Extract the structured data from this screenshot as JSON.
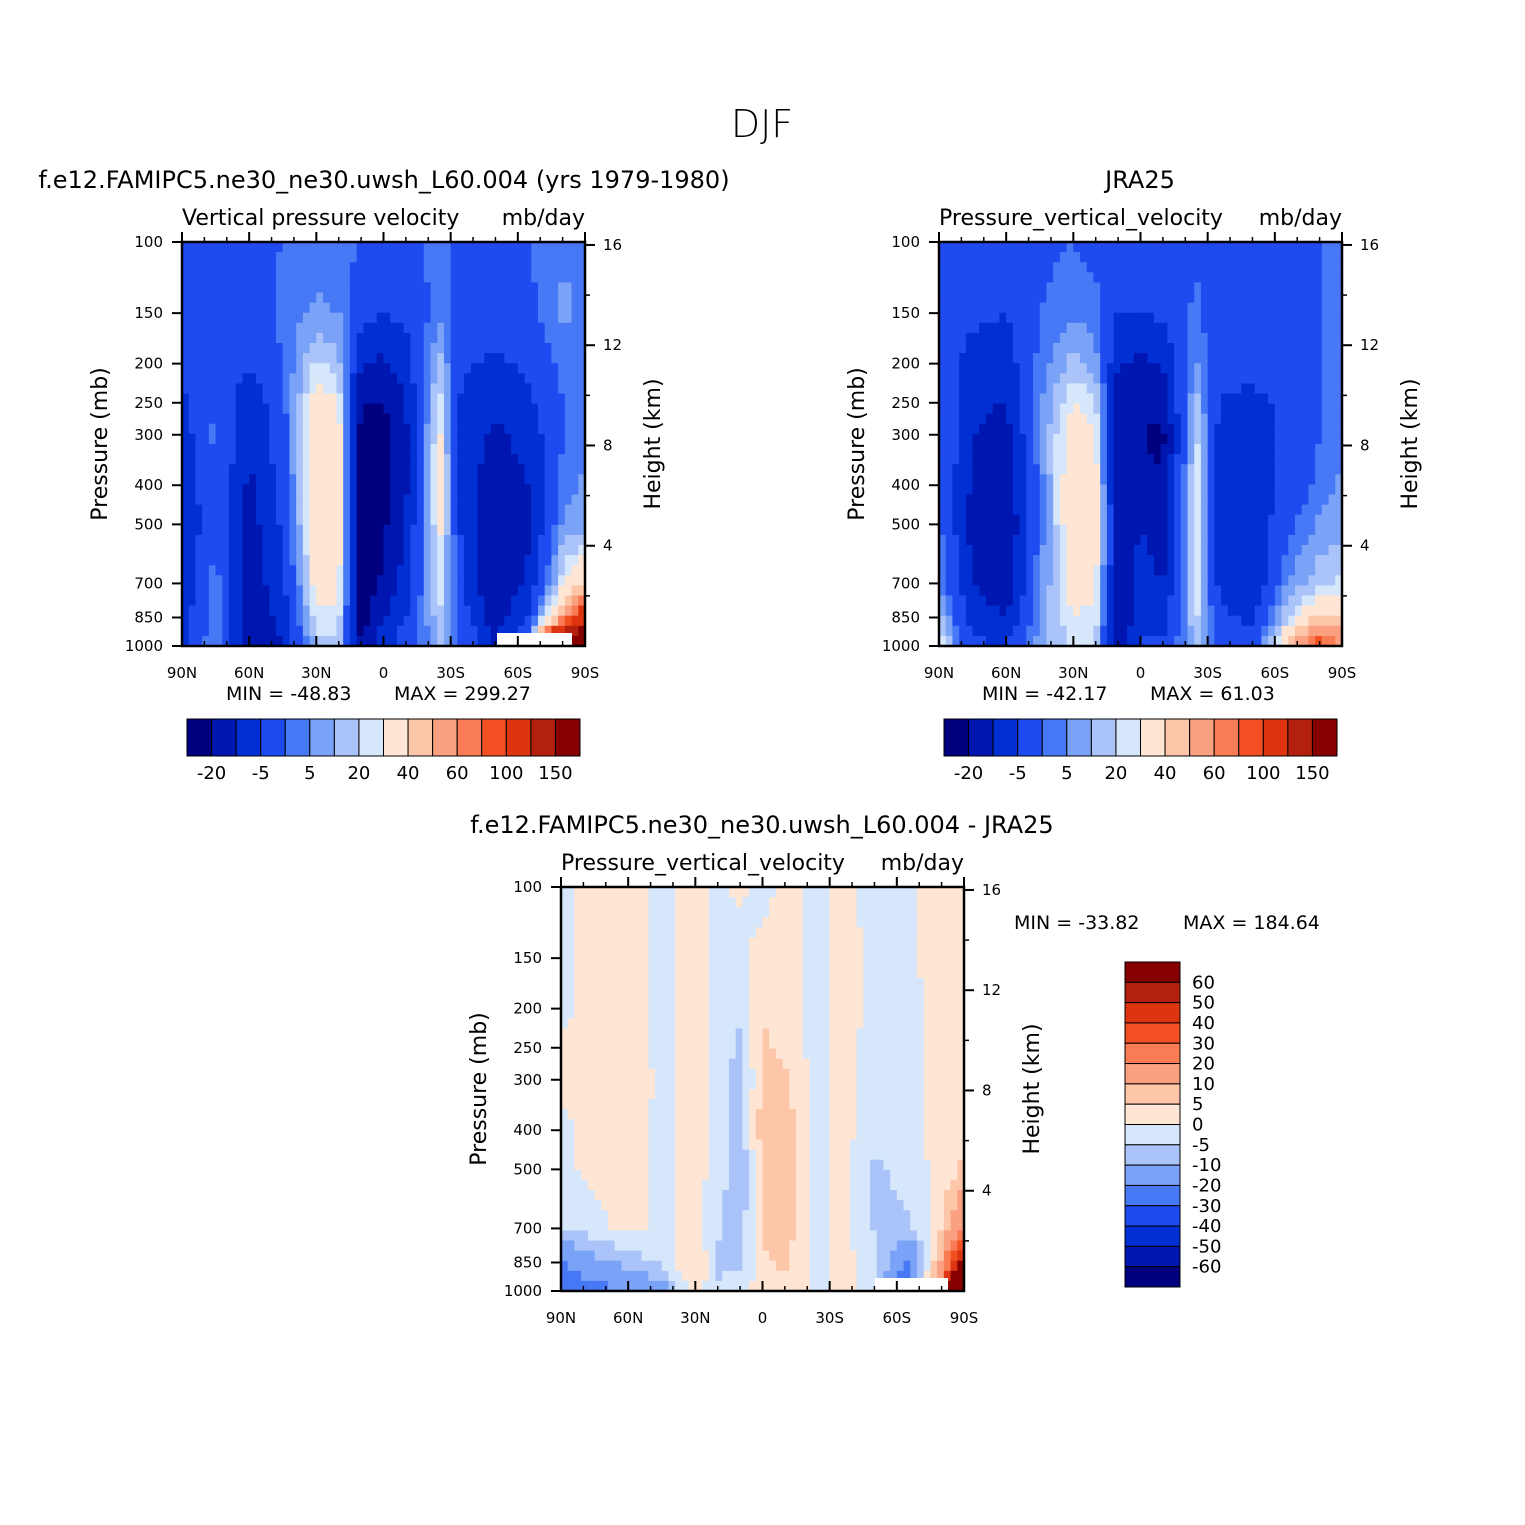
{
  "figure": {
    "title": "DJF"
  },
  "chart_data": [
    {
      "type": "heatmap",
      "id": "model",
      "title": "f.e12.FAMIPC5.ne30_ne30.uwsh_L60.004 (yrs 1979-1980)",
      "left_title": "Vertical pressure velocity",
      "units": "mb/day",
      "xlabel": "",
      "ylabel": "Pressure (mb)",
      "y2label": "Height (km)",
      "x_ticks": [
        "90N",
        "60N",
        "30N",
        "0",
        "30S",
        "60S",
        "90S"
      ],
      "y_ticks": [
        "100",
        "150",
        "200",
        "250",
        "300",
        "400",
        "500",
        "700",
        "850",
        "1000"
      ],
      "y2_ticks": [
        "16",
        "12",
        "8",
        "4"
      ],
      "min_text": "MIN = -48.83",
      "max_text": "MAX = 299.27",
      "min": -48.83,
      "max": 299.27,
      "colorbar": {
        "orientation": "horizontal",
        "labels": [
          "-20",
          "-5",
          "5",
          "20",
          "40",
          "60",
          "100",
          "150"
        ],
        "colors": [
          "#00007f",
          "#0016b0",
          "#002fd4",
          "#1e4bf0",
          "#4778f6",
          "#7aa2f6",
          "#aac4f9",
          "#d6e7fc",
          "#ffe6d4",
          "#fdc6a9",
          "#fba182",
          "#f97c55",
          "#f25022",
          "#de3510",
          "#b3200d",
          "#870000"
        ]
      },
      "columns": [
        {
          "lat": 90,
          "values": [
            -15,
            -15,
            -18,
            -22,
            -25,
            -28,
            -30,
            -28,
            -25,
            -22
          ]
        },
        {
          "lat": 75,
          "values": [
            -15,
            -12,
            -10,
            -10,
            -8,
            -10,
            -12,
            -6,
            -5,
            -4
          ]
        },
        {
          "lat": 60,
          "values": [
            -12,
            -15,
            -20,
            -28,
            -30,
            -32,
            -35,
            -38,
            -40,
            -38
          ]
        },
        {
          "lat": 45,
          "values": [
            -10,
            -8,
            -10,
            -12,
            -14,
            -16,
            -18,
            -22,
            -26,
            -30
          ]
        },
        {
          "lat": 30,
          "values": [
            -8,
            -4,
            6,
            14,
            18,
            20,
            18,
            14,
            8,
            2
          ]
        },
        {
          "lat": 20,
          "values": [
            -8,
            -5,
            2,
            10,
            14,
            16,
            15,
            12,
            8,
            4
          ]
        },
        {
          "lat": 10,
          "values": [
            -10,
            -15,
            -30,
            -40,
            -45,
            -45,
            -48,
            -48,
            -45,
            -40
          ]
        },
        {
          "lat": 0,
          "values": [
            -12,
            -20,
            -32,
            -40,
            -45,
            -46,
            -42,
            -38,
            -30,
            -22
          ]
        },
        {
          "lat": -10,
          "values": [
            -12,
            -18,
            -25,
            -30,
            -32,
            -32,
            -30,
            -26,
            -20,
            -15
          ]
        },
        {
          "lat": -25,
          "values": [
            -8,
            -6,
            2,
            8,
            12,
            14,
            12,
            10,
            4,
            0
          ]
        },
        {
          "lat": -35,
          "values": [
            -12,
            -14,
            -18,
            -22,
            -24,
            -24,
            -22,
            -20,
            -14,
            -10
          ]
        },
        {
          "lat": -50,
          "values": [
            -12,
            -15,
            -22,
            -28,
            -32,
            -36,
            -40,
            -40,
            -36,
            -30
          ]
        },
        {
          "lat": -65,
          "values": [
            -10,
            -12,
            -18,
            -22,
            -26,
            -30,
            -32,
            -28,
            -18,
            -8
          ]
        },
        {
          "lat": -80,
          "values": [
            -6,
            -4,
            -8,
            -10,
            -10,
            -8,
            -4,
            8,
            30,
            150
          ]
        },
        {
          "lat": -90,
          "values": [
            -5,
            -6,
            -8,
            -8,
            -6,
            -4,
            -2,
            20,
            80,
            299
          ]
        }
      ]
    },
    {
      "type": "heatmap",
      "id": "obs",
      "title": "JRA25",
      "left_title": "Pressure_vertical_velocity",
      "units": "mb/day",
      "xlabel": "",
      "ylabel": "Pressure (mb)",
      "y2label": "Height (km)",
      "x_ticks": [
        "90N",
        "60N",
        "30N",
        "0",
        "30S",
        "60S",
        "90S"
      ],
      "y_ticks": [
        "100",
        "150",
        "200",
        "250",
        "300",
        "400",
        "500",
        "700",
        "850",
        "1000"
      ],
      "y2_ticks": [
        "16",
        "12",
        "8",
        "4"
      ],
      "min_text": "MIN = -42.17",
      "max_text": "MAX = 61.03",
      "min": -42.17,
      "max": 61.03,
      "colorbar": {
        "orientation": "horizontal",
        "labels": [
          "-20",
          "-5",
          "5",
          "20",
          "40",
          "60",
          "100",
          "150"
        ],
        "colors": [
          "#00007f",
          "#0016b0",
          "#002fd4",
          "#1e4bf0",
          "#4778f6",
          "#7aa2f6",
          "#aac4f9",
          "#d6e7fc",
          "#ffe6d4",
          "#fdc6a9",
          "#fba182",
          "#f97c55",
          "#f25022",
          "#de3510",
          "#b3200d",
          "#870000"
        ]
      },
      "columns": [
        {
          "lat": 90,
          "values": [
            -15,
            -14,
            -12,
            -10,
            -8,
            -10,
            -8,
            -4,
            2,
            10
          ]
        },
        {
          "lat": 75,
          "values": [
            -16,
            -18,
            -24,
            -28,
            -30,
            -32,
            -34,
            -30,
            -24,
            -18
          ]
        },
        {
          "lat": 60,
          "values": [
            -16,
            -20,
            -25,
            -30,
            -34,
            -38,
            -40,
            -38,
            -30,
            -20
          ]
        },
        {
          "lat": 45,
          "values": [
            -12,
            -10,
            -8,
            -6,
            -6,
            -8,
            -8,
            -6,
            -4,
            -2
          ]
        },
        {
          "lat": 30,
          "values": [
            -10,
            -6,
            2,
            10,
            16,
            18,
            18,
            14,
            10,
            6
          ]
        },
        {
          "lat": 20,
          "values": [
            -12,
            -8,
            -2,
            6,
            10,
            14,
            14,
            12,
            8,
            4
          ]
        },
        {
          "lat": 10,
          "values": [
            -14,
            -20,
            -30,
            -36,
            -40,
            -40,
            -36,
            -38,
            -42,
            -38
          ]
        },
        {
          "lat": 0,
          "values": [
            -14,
            -20,
            -32,
            -38,
            -40,
            -36,
            -30,
            -26,
            -22,
            -18
          ]
        },
        {
          "lat": -10,
          "values": [
            -12,
            -18,
            -30,
            -36,
            -42,
            -40,
            -36,
            -30,
            -24,
            -18
          ]
        },
        {
          "lat": -25,
          "values": [
            -12,
            -8,
            -4,
            2,
            6,
            10,
            10,
            8,
            6,
            2
          ]
        },
        {
          "lat": -35,
          "values": [
            -14,
            -16,
            -18,
            -20,
            -22,
            -24,
            -24,
            -22,
            -18,
            -14
          ]
        },
        {
          "lat": -50,
          "values": [
            -12,
            -14,
            -18,
            -22,
            -26,
            -28,
            -30,
            -28,
            -22,
            -16
          ]
        },
        {
          "lat": -65,
          "values": [
            -12,
            -14,
            -16,
            -18,
            -18,
            -16,
            -12,
            -6,
            4,
            20
          ]
        },
        {
          "lat": -80,
          "values": [
            -10,
            -10,
            -10,
            -10,
            -10,
            -8,
            -4,
            4,
            20,
            61
          ]
        },
        {
          "lat": -90,
          "values": [
            -8,
            -8,
            -8,
            -6,
            -6,
            -4,
            -2,
            6,
            20,
            40
          ]
        }
      ]
    },
    {
      "type": "heatmap",
      "id": "diff",
      "title": "f.e12.FAMIPC5.ne30_ne30.uwsh_L60.004 - JRA25",
      "left_title": "Pressure_vertical_velocity",
      "units": "mb/day",
      "xlabel": "",
      "ylabel": "Pressure (mb)",
      "y2label": "Height (km)",
      "x_ticks": [
        "90N",
        "60N",
        "30N",
        "0",
        "30S",
        "60S",
        "90S"
      ],
      "y_ticks": [
        "100",
        "150",
        "200",
        "250",
        "300",
        "400",
        "500",
        "700",
        "850",
        "1000"
      ],
      "y2_ticks": [
        "16",
        "12",
        "8",
        "4"
      ],
      "min_text": "MIN = -33.82",
      "max_text": "MAX = 184.64",
      "min": -33.82,
      "max": 184.64,
      "colorbar": {
        "orientation": "vertical",
        "labels": [
          "60",
          "50",
          "40",
          "30",
          "20",
          "10",
          "5",
          "0",
          "-5",
          "-10",
          "-20",
          "-30",
          "-40",
          "-50",
          "-60"
        ],
        "colors": [
          "#00007f",
          "#0016b0",
          "#002fd4",
          "#1e4bf0",
          "#4778f6",
          "#7aa2f6",
          "#aac4f9",
          "#d6e7fc",
          "#ffe6d4",
          "#fdc6a9",
          "#fba182",
          "#f97c55",
          "#f25022",
          "#de3510",
          "#b3200d",
          "#870000"
        ]
      },
      "columns": [
        {
          "lat": 90,
          "values": [
            -2,
            -2,
            -2,
            2,
            2,
            -2,
            -2,
            -4,
            -20,
            -30
          ]
        },
        {
          "lat": 75,
          "values": [
            2,
            2,
            2,
            3,
            3,
            2,
            2,
            -2,
            -12,
            -24
          ]
        },
        {
          "lat": 60,
          "values": [
            2,
            2,
            3,
            2,
            3,
            3,
            2,
            2,
            -8,
            -18
          ]
        },
        {
          "lat": 45,
          "values": [
            -2,
            -1,
            -2,
            -2,
            -1,
            -2,
            -2,
            -2,
            -4,
            -14
          ]
        },
        {
          "lat": 30,
          "values": [
            2,
            2,
            2,
            2,
            2,
            2,
            2,
            2,
            6,
            3
          ]
        },
        {
          "lat": 20,
          "values": [
            -1,
            -1,
            -2,
            -2,
            -2,
            -2,
            -2,
            -4,
            -6,
            -4
          ]
        },
        {
          "lat": 10,
          "values": [
            1,
            -2,
            -4,
            -6,
            -8,
            -8,
            -10,
            -8,
            -6,
            -2
          ]
        },
        {
          "lat": 0,
          "values": [
            -2,
            2,
            4,
            6,
            6,
            8,
            6,
            6,
            4,
            2
          ]
        },
        {
          "lat": -10,
          "values": [
            2,
            2,
            3,
            4,
            6,
            8,
            8,
            8,
            6,
            3
          ]
        },
        {
          "lat": -25,
          "values": [
            -2,
            -2,
            -2,
            -3,
            -2,
            -2,
            -2,
            -2,
            -2,
            -2
          ]
        },
        {
          "lat": -35,
          "values": [
            2,
            3,
            3,
            2,
            2,
            2,
            2,
            2,
            2,
            1
          ]
        },
        {
          "lat": -50,
          "values": [
            -2,
            -2,
            -2,
            -2,
            -2,
            -3,
            -6,
            -6,
            -2,
            -2
          ]
        },
        {
          "lat": -65,
          "values": [
            -1,
            -1,
            -2,
            -2,
            -2,
            -2,
            -3,
            -6,
            -22,
            -30
          ]
        },
        {
          "lat": -80,
          "values": [
            2,
            2,
            3,
            2,
            2,
            3,
            2,
            4,
            12,
            30
          ]
        },
        {
          "lat": -90,
          "values": [
            1,
            1,
            2,
            2,
            2,
            2,
            6,
            20,
            60,
            184
          ]
        }
      ]
    }
  ]
}
